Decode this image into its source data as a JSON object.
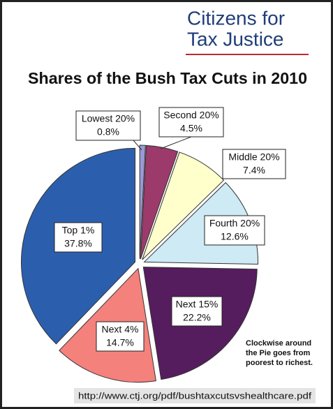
{
  "logo": [
    "Citizens for",
    "Tax Justice"
  ],
  "chart_data": {
    "type": "pie",
    "title": "Shares of the Bush Tax Cuts in 2010",
    "categories": [
      "Lowest 20%",
      "Second 20%",
      "Middle 20%",
      "Fourth 20%",
      "Next 15%",
      "Next 4%",
      "Top 1%"
    ],
    "values": [
      0.8,
      4.5,
      7.4,
      12.6,
      22.2,
      14.7,
      37.8
    ],
    "value_labels": [
      "0.8%",
      "4.5%",
      "7.4%",
      "12.6%",
      "22.2%",
      "14.7%",
      "37.8%"
    ],
    "colors": [
      "#9a9ad8",
      "#9b3a6b",
      "#ffffcc",
      "#cdeaf5",
      "#561d5e",
      "#f4817c",
      "#2b5fae"
    ],
    "note": [
      "Clockwise around",
      "the Pie goes from",
      "poorest to richest."
    ]
  },
  "source": "http://www.ctj.org/pdf/bushtaxcutsvshealthcare.pdf"
}
